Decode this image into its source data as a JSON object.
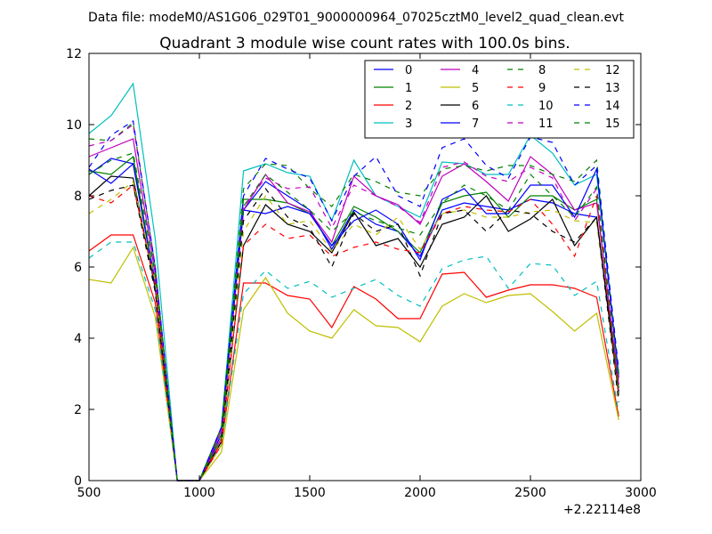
{
  "header_text": "Data file: modeM0/AS1G06_029T01_9000000964_07025cztM0_level2_quad_clean.evt",
  "chart_data": {
    "type": "line",
    "title": "Quadrant 3 module wise count rates with 100.0s bins.",
    "xlabel": "",
    "ylabel": "",
    "x_offset_label": "+2.22114e8",
    "xlim": [
      500,
      3000
    ],
    "ylim": [
      0,
      12
    ],
    "xticks": [
      "500",
      "1000",
      "1500",
      "2000",
      "2500",
      "3000"
    ],
    "yticks": [
      "0",
      "2",
      "4",
      "6",
      "8",
      "10",
      "12"
    ],
    "grid": false,
    "legend_position": "top-right",
    "x": [
      500,
      600,
      700,
      800,
      900,
      1000,
      1100,
      1200,
      1300,
      1400,
      1500,
      1600,
      1700,
      1800,
      1900,
      2000,
      2100,
      2200,
      2300,
      2400,
      2500,
      2600,
      2700,
      2800,
      2900
    ],
    "series": [
      {
        "name": "0",
        "color": "#0000ff",
        "dash": false,
        "values": [
          8.6,
          9.05,
          8.9,
          5.6,
          0.0,
          0.0,
          1.3,
          7.6,
          8.4,
          8.0,
          7.6,
          6.5,
          7.6,
          7.2,
          7.0,
          6.3,
          7.6,
          7.8,
          7.7,
          7.6,
          7.9,
          7.8,
          7.5,
          7.4,
          2.5
        ]
      },
      {
        "name": "1",
        "color": "#008000",
        "dash": false,
        "values": [
          8.7,
          8.6,
          9.1,
          5.5,
          0.0,
          0.0,
          1.2,
          7.9,
          7.9,
          7.8,
          7.5,
          6.6,
          7.7,
          7.4,
          7.0,
          6.4,
          7.8,
          8.0,
          8.1,
          7.4,
          8.0,
          8.0,
          7.6,
          7.9,
          2.6
        ]
      },
      {
        "name": "2",
        "color": "#ff0000",
        "dash": false,
        "values": [
          6.45,
          6.9,
          6.9,
          5.0,
          0.0,
          0.0,
          1.0,
          5.55,
          5.55,
          5.2,
          5.1,
          4.3,
          5.45,
          5.1,
          4.55,
          4.55,
          5.8,
          5.85,
          5.15,
          5.35,
          5.5,
          5.5,
          5.4,
          5.15,
          1.8
        ]
      },
      {
        "name": "3",
        "color": "#00bfbf",
        "dash": false,
        "values": [
          9.75,
          10.25,
          11.15,
          6.8,
          0.0,
          0.0,
          1.5,
          8.7,
          8.9,
          8.65,
          8.55,
          7.3,
          9.0,
          8.0,
          7.7,
          7.4,
          8.95,
          8.9,
          8.6,
          8.6,
          9.7,
          9.2,
          8.3,
          8.6,
          3.0
        ]
      },
      {
        "name": "4",
        "color": "#bf00bf",
        "dash": false,
        "values": [
          9.1,
          9.35,
          9.6,
          5.8,
          0.0,
          0.0,
          1.4,
          7.6,
          8.6,
          7.8,
          7.55,
          6.7,
          8.55,
          8.0,
          7.75,
          7.2,
          8.55,
          8.9,
          8.4,
          7.85,
          9.1,
          8.6,
          7.6,
          7.8,
          2.7
        ]
      },
      {
        "name": "5",
        "color": "#bfbf00",
        "dash": false,
        "values": [
          5.65,
          5.55,
          6.55,
          4.6,
          0.0,
          0.0,
          0.8,
          4.8,
          5.7,
          4.7,
          4.2,
          4.0,
          4.8,
          4.35,
          4.3,
          3.9,
          4.9,
          5.25,
          5.0,
          5.2,
          5.25,
          4.75,
          4.2,
          4.7,
          1.7
        ]
      },
      {
        "name": "6",
        "color": "#000000",
        "dash": false,
        "values": [
          8.0,
          8.55,
          8.5,
          5.4,
          0.0,
          0.0,
          1.1,
          6.6,
          7.75,
          7.2,
          7.0,
          6.4,
          7.55,
          6.6,
          6.8,
          6.0,
          7.2,
          7.4,
          8.0,
          7.0,
          7.35,
          7.9,
          6.6,
          7.4,
          2.4
        ]
      },
      {
        "name": "7",
        "color": "#0000ff",
        "dash": false,
        "values": [
          8.75,
          8.35,
          8.9,
          5.5,
          0.0,
          0.0,
          1.5,
          7.6,
          7.5,
          7.7,
          7.5,
          6.6,
          7.3,
          7.6,
          7.2,
          6.2,
          7.9,
          8.2,
          7.5,
          7.5,
          8.3,
          8.3,
          7.4,
          8.75,
          2.9
        ]
      },
      {
        "name": "8",
        "color": "#008000",
        "dash": true,
        "values": [
          9.6,
          9.55,
          10.05,
          6.0,
          0.0,
          0.0,
          1.5,
          8.2,
          8.9,
          8.85,
          8.2,
          7.7,
          8.6,
          8.4,
          8.1,
          8.0,
          8.75,
          8.85,
          8.7,
          8.85,
          8.85,
          8.6,
          8.4,
          9.0,
          3.0
        ]
      },
      {
        "name": "9",
        "color": "#ff0000",
        "dash": true,
        "values": [
          8.0,
          7.8,
          8.3,
          5.5,
          0.0,
          0.0,
          1.1,
          6.6,
          7.2,
          6.8,
          6.9,
          6.3,
          6.55,
          6.7,
          6.5,
          6.4,
          7.5,
          7.7,
          7.6,
          7.55,
          7.9,
          7.2,
          6.3,
          8.0,
          2.4
        ]
      },
      {
        "name": "10",
        "color": "#00bfbf",
        "dash": true,
        "values": [
          6.25,
          6.7,
          6.7,
          4.8,
          0.0,
          0.0,
          1.0,
          5.25,
          5.9,
          5.4,
          5.6,
          5.15,
          5.4,
          5.65,
          5.2,
          4.9,
          5.95,
          6.2,
          6.3,
          5.4,
          6.1,
          6.05,
          5.2,
          5.6,
          1.9
        ]
      },
      {
        "name": "11",
        "color": "#bf00bf",
        "dash": true,
        "values": [
          9.4,
          9.55,
          10.0,
          6.0,
          0.0,
          0.0,
          1.2,
          7.7,
          8.5,
          8.2,
          8.25,
          7.1,
          8.3,
          8.0,
          7.7,
          7.25,
          8.8,
          8.95,
          8.55,
          8.4,
          8.8,
          8.5,
          7.3,
          8.2,
          2.8
        ]
      },
      {
        "name": "12",
        "color": "#bfbf00",
        "dash": true,
        "values": [
          7.5,
          7.9,
          8.4,
          5.6,
          0.0,
          0.0,
          1.0,
          7.0,
          8.0,
          7.2,
          7.3,
          6.45,
          7.2,
          6.9,
          7.4,
          6.5,
          7.5,
          7.6,
          7.4,
          7.4,
          7.55,
          7.6,
          7.3,
          7.25,
          2.3
        ]
      },
      {
        "name": "13",
        "color": "#000000",
        "dash": true,
        "values": [
          7.9,
          8.15,
          8.3,
          5.3,
          0.0,
          0.0,
          1.1,
          7.3,
          8.2,
          7.4,
          7.1,
          6.0,
          7.5,
          7.0,
          7.2,
          5.75,
          7.5,
          7.6,
          7.0,
          7.6,
          7.5,
          7.0,
          6.7,
          7.4,
          2.2
        ]
      },
      {
        "name": "14",
        "color": "#0000ff",
        "dash": true,
        "values": [
          8.8,
          9.7,
          10.1,
          6.0,
          0.0,
          0.0,
          1.5,
          8.0,
          9.05,
          8.75,
          8.5,
          7.3,
          8.55,
          9.1,
          8.0,
          7.7,
          9.35,
          9.6,
          8.85,
          8.5,
          9.65,
          9.5,
          8.3,
          8.85,
          3.1
        ]
      },
      {
        "name": "15",
        "color": "#008000",
        "dash": true,
        "values": [
          8.6,
          9.0,
          9.2,
          5.8,
          0.0,
          0.0,
          1.3,
          7.7,
          8.6,
          8.1,
          7.6,
          7.0,
          7.55,
          7.3,
          7.1,
          6.9,
          7.8,
          8.3,
          8.0,
          7.6,
          8.6,
          8.0,
          7.4,
          8.25,
          2.6
        ]
      }
    ]
  }
}
